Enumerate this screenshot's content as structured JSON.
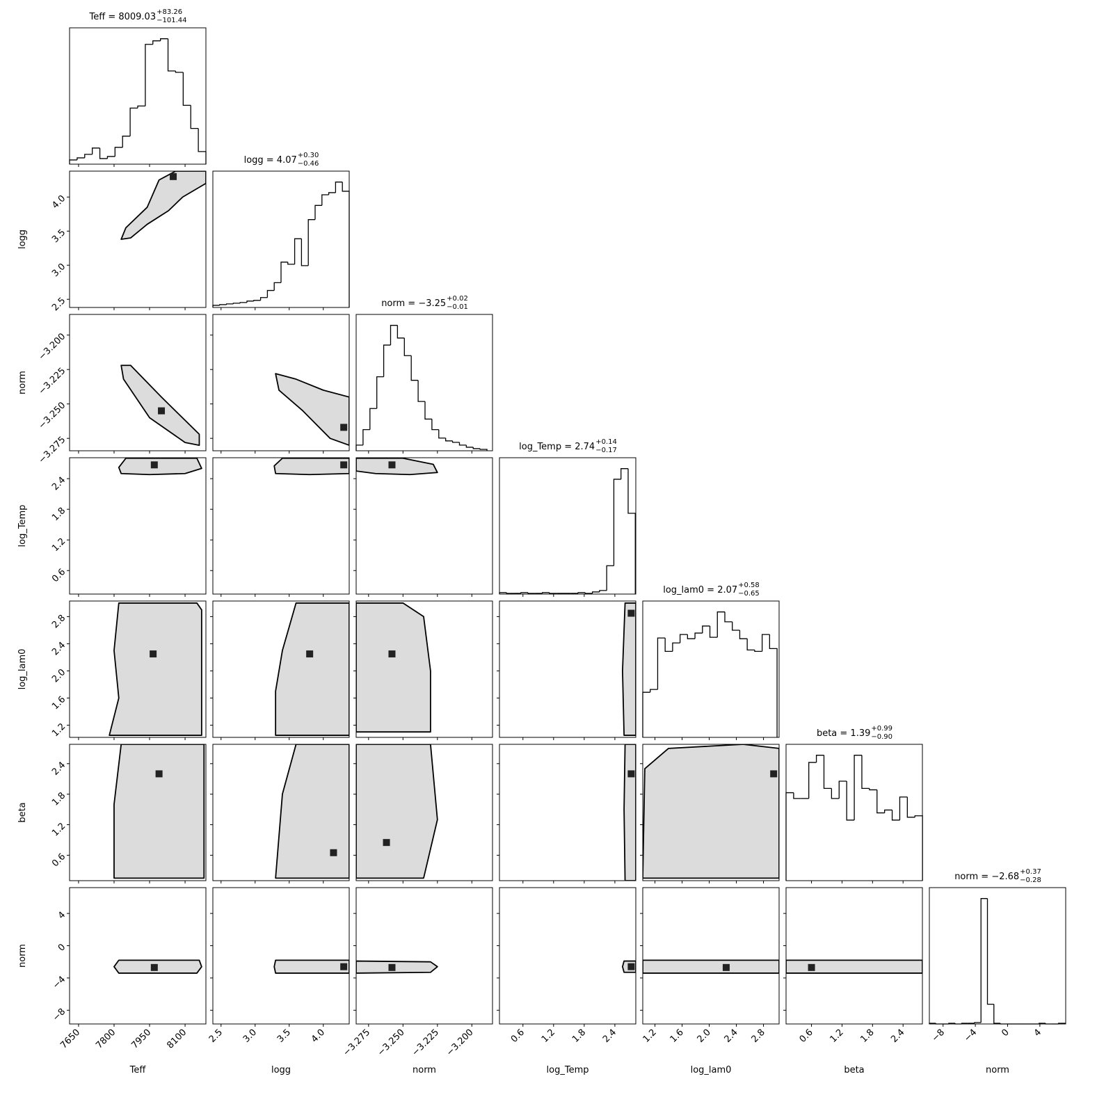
{
  "chart_data": {
    "type": "corner",
    "parameters": [
      {
        "label": "Teff",
        "title": "Teff = 8009.03",
        "title_upper": "+83.26",
        "title_lower": "−101.44",
        "lim": [
          7612,
          8188
        ],
        "ticks": [
          7650,
          7800,
          7950,
          8100
        ],
        "bins": [
          7612,
          7644,
          7676,
          7708,
          7740,
          7772,
          7804,
          7836,
          7868,
          7900,
          7932,
          7964,
          7996,
          8028,
          8060,
          8092,
          8124,
          8156,
          8188
        ],
        "counts": [
          6,
          9,
          14,
          23,
          8,
          11,
          24,
          40,
          80,
          83,
          171,
          176,
          179,
          133,
          131,
          84,
          51,
          18
        ]
      },
      {
        "label": "logg",
        "title": "logg = 4.07",
        "title_upper": "+0.30",
        "title_lower": "−0.46",
        "lim": [
          2.38,
          4.38
        ],
        "ticks": [
          2.5,
          {
            "value": 3,
            "label": "3.0"
          },
          3.5,
          {
            "value": 4,
            "label": "4.0"
          }
        ],
        "bins": [
          2.38,
          2.48,
          2.58,
          2.68,
          2.78,
          2.88,
          2.98,
          3.08,
          3.18,
          3.28,
          3.38,
          3.48,
          3.58,
          3.68,
          3.78,
          3.88,
          3.98,
          4.08,
          4.18,
          4.28,
          4.38
        ],
        "counts": [
          3,
          4,
          5,
          6,
          7,
          9,
          10,
          14,
          24,
          35,
          64,
          61,
          97,
          59,
          124,
          144,
          159,
          162,
          177,
          164
        ]
      },
      {
        "label": "norm",
        "title": "norm = −3.25",
        "title_upper": "+0.02",
        "title_lower": "−0.01",
        "lim": [
          -3.284,
          -3.185
        ],
        "ticks": [
          {
            "value": -3.275,
            "label": "−3.275"
          },
          {
            "value": -3.25,
            "label": "−3.250"
          },
          {
            "value": -3.225,
            "label": "−3.225"
          },
          {
            "value": -3.2,
            "label": "−3.200"
          }
        ],
        "bins": [
          -3.284,
          -3.279,
          -3.274,
          -3.269,
          -3.264,
          -3.259,
          -3.254,
          -3.249,
          -3.244,
          -3.239,
          -3.234,
          -3.229,
          -3.224,
          -3.219,
          -3.214,
          -3.209,
          -3.204,
          -3.199,
          -3.194,
          -3.189
        ],
        "counts": [
          8,
          30,
          60,
          105,
          150,
          178,
          160,
          135,
          100,
          70,
          45,
          30,
          18,
          14,
          12,
          8,
          5,
          3,
          2
        ]
      },
      {
        "label": "log_Temp",
        "title": "log_Temp = 2.74",
        "title_upper": "+0.14",
        "title_lower": "−0.17",
        "lim": [
          0.14,
          2.81
        ],
        "ticks": [
          0.6,
          1.2,
          1.8,
          2.4
        ],
        "bins": [
          0.14,
          0.28,
          0.42,
          0.56,
          0.7,
          0.84,
          0.98,
          1.12,
          1.26,
          1.4,
          1.54,
          1.68,
          1.82,
          1.96,
          2.1,
          2.24,
          2.38,
          2.52,
          2.66,
          2.8
        ],
        "counts": [
          2,
          1,
          1,
          2,
          1,
          1,
          2,
          1,
          1,
          1,
          1,
          2,
          1,
          3,
          5,
          40,
          162,
          177,
          114
        ]
      },
      {
        "label": "log_lam0",
        "title": "log_lam0 = 2.07",
        "title_upper": "+0.58",
        "title_lower": "−0.65",
        "lim": [
          1.02,
          3.03
        ],
        "ticks": [
          1.2,
          1.6,
          {
            "value": 2,
            "label": "2.0"
          },
          2.4,
          2.8
        ],
        "bins": [
          1.02,
          1.13,
          1.24,
          1.35,
          1.46,
          1.57,
          1.68,
          1.79,
          1.9,
          2.01,
          2.12,
          2.23,
          2.34,
          2.45,
          2.56,
          2.67,
          2.78,
          2.89,
          3.0
        ],
        "counts": [
          64,
          68,
          141,
          122,
          134,
          146,
          140,
          148,
          158,
          142,
          178,
          164,
          152,
          140,
          124,
          122,
          146,
          126
        ]
      },
      {
        "label": "beta",
        "title": "beta = 1.39",
        "title_upper": "+0.99",
        "title_lower": "−0.90",
        "lim": [
          0.1,
          2.78
        ],
        "ticks": [
          0.6,
          1.2,
          1.8,
          2.4
        ],
        "bins": [
          0.1,
          0.249,
          0.398,
          0.547,
          0.696,
          0.845,
          0.994,
          1.143,
          1.292,
          1.441,
          1.59,
          1.739,
          1.888,
          2.037,
          2.186,
          2.335,
          2.484,
          2.633,
          2.782
        ],
        "counts": [
          122,
          114,
          114,
          164,
          174,
          128,
          114,
          138,
          84,
          174,
          128,
          126,
          94,
          98,
          84,
          116,
          88,
          90
        ]
      },
      {
        "label": "norm",
        "title": "norm = −2.68",
        "title_upper": "+0.37",
        "title_lower": "−0.28",
        "lim": [
          -9.7,
          7.2
        ],
        "ticks": [
          {
            "value": -8,
            "label": "−8"
          },
          {
            "value": -4,
            "label": "−4"
          },
          0,
          4
        ],
        "bins": [
          -9.7,
          -8.9,
          -8.1,
          -7.3,
          -6.5,
          -5.7,
          -4.9,
          -4.1,
          -3.3,
          -2.5,
          -1.7,
          -0.9,
          -0.1,
          0.7,
          1.5,
          2.3,
          3.1,
          3.9,
          4.7,
          5.5,
          6.3,
          7.1
        ],
        "counts": [
          1,
          0,
          0,
          1,
          0,
          1,
          1,
          2,
          178,
          28,
          1,
          0,
          0,
          0,
          0,
          0,
          0,
          1,
          0,
          0,
          1
        ]
      }
    ],
    "pairs": [
      [
        {
          "x": [
            7830,
            7850,
            7940,
            7990,
            8060,
            8188,
            8188,
            8090,
            8030,
            7940,
            7870
          ],
          "y": [
            3.38,
            3.55,
            3.85,
            4.25,
            4.38,
            4.38,
            4.2,
            4.0,
            3.8,
            3.6,
            3.4
          ],
          "peak": [
            8050,
            4.3
          ]
        }
      ],
      [
        {
          "x": [
            7830,
            7870,
            8000,
            8160,
            8160,
            8100,
            7950,
            7840
          ],
          "y": [
            -3.222,
            -3.222,
            -3.245,
            -3.272,
            -3.28,
            -3.278,
            -3.26,
            -3.232
          ],
          "peak": [
            8000,
            -3.255
          ]
        },
        {
          "x": [
            3.3,
            3.6,
            4.0,
            4.38,
            4.38,
            4.1,
            3.7,
            3.35
          ],
          "y": [
            -3.228,
            -3.232,
            -3.24,
            -3.245,
            -3.28,
            -3.275,
            -3.255,
            -3.24
          ],
          "peak": [
            4.3,
            -3.267
          ]
        }
      ],
      [
        {
          "x": [
            7830,
            7950,
            8100,
            8170,
            8150,
            7850,
            7820
          ],
          "y": [
            2.5,
            2.48,
            2.5,
            2.6,
            2.8,
            2.8,
            2.62
          ],
          "peak": [
            7970,
            2.67
          ]
        },
        {
          "x": [
            3.3,
            3.8,
            4.38,
            4.38,
            3.4,
            3.28
          ],
          "y": [
            2.5,
            2.48,
            2.5,
            2.8,
            2.8,
            2.65
          ],
          "peak": [
            4.3,
            2.67
          ]
        },
        {
          "x": [
            -3.284,
            -3.27,
            -3.245,
            -3.225,
            -3.228,
            -3.25,
            -3.284
          ],
          "y": [
            2.55,
            2.5,
            2.48,
            2.52,
            2.68,
            2.8,
            2.8
          ],
          "peak": [
            -3.258,
            2.67
          ]
        }
      ],
      [
        {
          "x": [
            7780,
            8170,
            8170,
            8150,
            7820,
            7800,
            7820
          ],
          "y": [
            1.05,
            1.05,
            2.9,
            3.0,
            3.0,
            2.3,
            1.6
          ],
          "peak": [
            7965,
            2.25
          ]
        },
        {
          "x": [
            3.3,
            4.38,
            4.38,
            3.6,
            3.4,
            3.3
          ],
          "y": [
            1.05,
            1.05,
            3.0,
            3.0,
            2.3,
            1.7
          ],
          "peak": [
            3.8,
            2.25
          ]
        },
        {
          "x": [
            -3.284,
            -3.23,
            -3.23,
            -3.235,
            -3.25,
            -3.284
          ],
          "y": [
            1.1,
            1.1,
            2.0,
            2.8,
            3.0,
            3.0
          ],
          "peak": [
            -3.258,
            2.25
          ]
        },
        {
          "x": [
            2.58,
            2.81,
            2.81,
            2.6,
            2.55
          ],
          "y": [
            1.05,
            1.05,
            3.0,
            3.0,
            2.0
          ],
          "peak": [
            2.72,
            2.85
          ]
        }
      ],
      [
        {
          "x": [
            7800,
            8180,
            8180,
            7830,
            7800
          ],
          "y": [
            0.15,
            0.15,
            2.78,
            2.78,
            1.6
          ],
          "peak": [
            7990,
            2.2
          ]
        },
        {
          "x": [
            3.3,
            4.38,
            4.38,
            3.6,
            3.4
          ],
          "y": [
            0.15,
            0.15,
            2.78,
            2.78,
            1.8
          ],
          "peak": [
            4.15,
            0.65
          ]
        },
        {
          "x": [
            -3.284,
            -3.235,
            -3.225,
            -3.23,
            -3.284
          ],
          "y": [
            0.15,
            0.15,
            1.3,
            2.78,
            2.78
          ],
          "peak": [
            -3.262,
            0.85
          ]
        },
        {
          "x": [
            2.6,
            2.81,
            2.81,
            2.6,
            2.58
          ],
          "y": [
            0.1,
            0.1,
            2.78,
            2.78,
            1.5
          ],
          "peak": [
            2.72,
            2.2
          ]
        },
        {
          "x": [
            1.02,
            3.03,
            3.03,
            2.5,
            1.4,
            1.05
          ],
          "y": [
            0.15,
            0.15,
            2.7,
            2.78,
            2.7,
            2.3
          ],
          "peak": [
            2.95,
            2.2
          ]
        }
      ],
      [
        {
          "x": [
            7820,
            8160,
            8170,
            8150,
            7820,
            7800
          ],
          "y": [
            -1.8,
            -1.8,
            -2.6,
            -3.4,
            -3.4,
            -2.6
          ],
          "peak": [
            7970,
            -2.7
          ]
        },
        {
          "x": [
            3.3,
            4.38,
            4.38,
            3.3,
            3.28
          ],
          "y": [
            -1.8,
            -1.8,
            -3.4,
            -3.4,
            -2.6
          ],
          "peak": [
            4.3,
            -2.6
          ]
        },
        {
          "x": [
            -3.284,
            -3.23,
            -3.225,
            -3.23,
            -3.284
          ],
          "y": [
            -1.9,
            -2.0,
            -2.6,
            -3.3,
            -3.4
          ],
          "peak": [
            -3.258,
            -2.7
          ]
        },
        {
          "x": [
            2.58,
            2.81,
            2.81,
            2.58,
            2.55
          ],
          "y": [
            -1.9,
            -1.9,
            -3.3,
            -3.3,
            -2.6
          ],
          "peak": [
            2.72,
            -2.6
          ]
        },
        {
          "x": [
            1.02,
            3.03,
            3.03,
            1.02
          ],
          "y": [
            -1.8,
            -1.8,
            -3.4,
            -3.4
          ],
          "peak": [
            2.25,
            -2.7
          ]
        },
        {
          "x": [
            0.1,
            2.78,
            2.78,
            0.1
          ],
          "y": [
            -1.8,
            -1.8,
            -3.4,
            -3.4
          ],
          "peak": [
            0.6,
            -2.7
          ]
        }
      ]
    ]
  }
}
